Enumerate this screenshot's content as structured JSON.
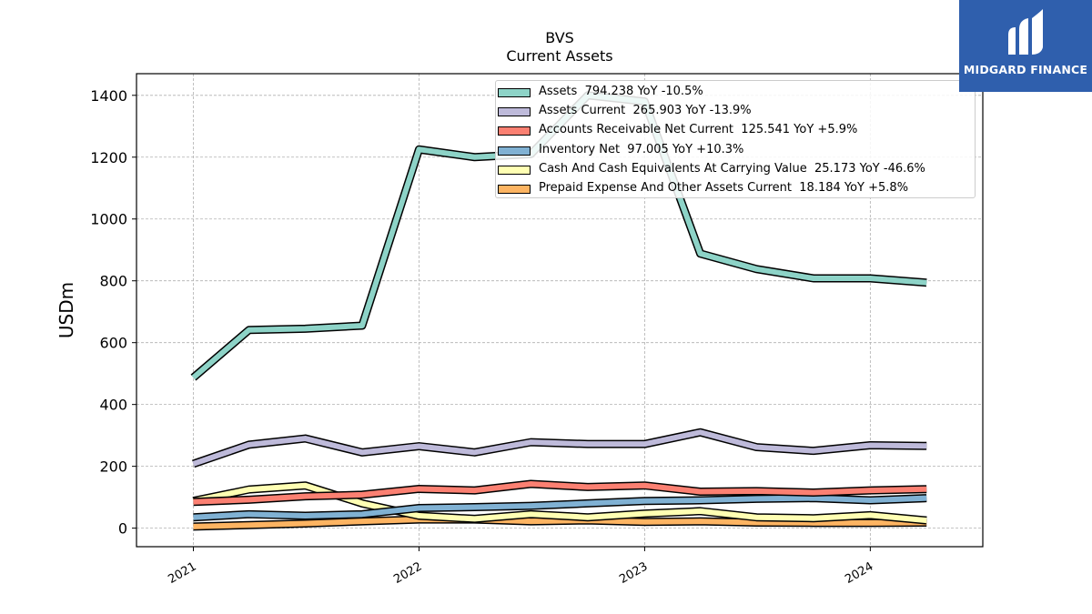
{
  "title": {
    "line1": "BVS",
    "line2": "Current  Assets"
  },
  "logo": {
    "text": "MIDGARD FINANCE",
    "brand_color": "#2f5fad"
  },
  "chart_data": {
    "type": "line",
    "ylabel": "USDm",
    "xlabel": "",
    "ylim": [
      -60,
      1470
    ],
    "yticks": [
      0,
      200,
      400,
      600,
      800,
      1000,
      1200,
      1400
    ],
    "xticks": [
      "2021",
      "2022",
      "2023",
      "2024"
    ],
    "grid": true,
    "legend_position": "top-right",
    "x": [
      "2021-01-01",
      "2021-04-01",
      "2021-07-01",
      "2021-10-01",
      "2022-01-01",
      "2022-04-01",
      "2022-07-01",
      "2022-10-01",
      "2023-01-01",
      "2023-04-01",
      "2023-07-01",
      "2023-10-01",
      "2024-01-01",
      "2024-04-01"
    ],
    "series": [
      {
        "name": "Assets  794.238 YoY -10.5%",
        "color": "#8dd3c7",
        "values": [
          487,
          641,
          645,
          655,
          1225,
          1200,
          1210,
          1400,
          1380,
          888,
          838,
          808,
          808,
          794
        ]
      },
      {
        "name": "Assets Current  265.903 YoY -13.9%",
        "color": "#bebada",
        "values": [
          208,
          270,
          290,
          245,
          265,
          245,
          278,
          272,
          272,
          310,
          262,
          250,
          268,
          266
        ]
      },
      {
        "name": "Accounts Receivable Net Current  125.541 YoY +5.9%",
        "color": "#fb8072",
        "values": [
          85,
          92,
          103,
          108,
          127,
          122,
          143,
          133,
          138,
          118,
          120,
          115,
          122,
          126
        ]
      },
      {
        "name": "Inventory Net  97.005 YoY +10.3%",
        "color": "#80b1d3",
        "values": [
          35,
          45,
          40,
          45,
          65,
          68,
          72,
          80,
          88,
          90,
          95,
          97,
          90,
          97
        ]
      },
      {
        "name": "Cash And Cash Equivalents At Carrying Value  25.173 YoY -46.6%",
        "color": "#ffffb3",
        "values": [
          88,
          125,
          138,
          80,
          40,
          30,
          45,
          35,
          47,
          55,
          35,
          32,
          42,
          25
        ]
      },
      {
        "name": "Prepaid Expense And Other Assets Current  18.184 YoY +5.8%",
        "color": "#fdb462",
        "values": [
          5,
          10,
          15,
          22,
          28,
          28,
          22,
          25,
          20,
          22,
          18,
          17,
          17,
          18
        ]
      }
    ]
  }
}
